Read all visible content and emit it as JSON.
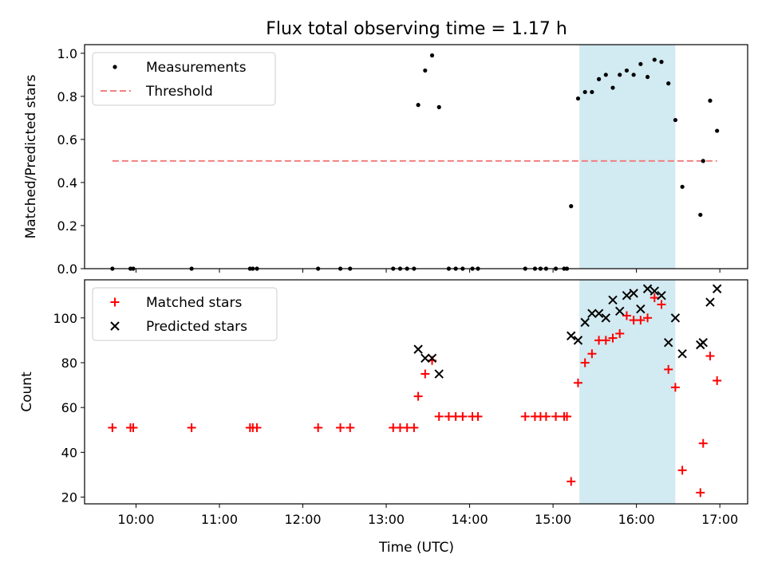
{
  "figure": {
    "title": "Flux total observing time = 1.17 h",
    "xlabel": "Time (UTC)",
    "xticks": [
      "10:00",
      "11:00",
      "12:00",
      "13:00",
      "14:00",
      "15:00",
      "16:00",
      "17:00"
    ]
  },
  "colors": {
    "measurements": "#000000",
    "threshold": "#f08080",
    "matched": "#ff0000",
    "predicted": "#000000",
    "span": "#add8e6"
  },
  "chart_data": [
    {
      "type": "scatter",
      "ylabel": "Matched/Predicted stars",
      "xlim": [
        "09:23",
        "17:20"
      ],
      "ylim": [
        0,
        1.04
      ],
      "yticks": [
        "0.0",
        "0.2",
        "0.4",
        "0.6",
        "0.8",
        "1.0"
      ],
      "shaded_span": [
        "15:19",
        "16:28"
      ],
      "legend": {
        "placement": "upper left",
        "entries": [
          "Measurements",
          "Threshold"
        ]
      },
      "threshold": {
        "name": "Threshold",
        "value": 0.5,
        "x": [
          "09:43",
          "16:58"
        ]
      },
      "series": [
        {
          "name": "Measurements",
          "points": [
            [
              "09:43",
              0.0
            ],
            [
              "09:56",
              0.0
            ],
            [
              "09:58",
              0.0
            ],
            [
              "10:40",
              0.0
            ],
            [
              "11:22",
              0.0
            ],
            [
              "11:24",
              0.0
            ],
            [
              "11:27",
              0.0
            ],
            [
              "12:11",
              0.0
            ],
            [
              "12:27",
              0.0
            ],
            [
              "12:34",
              0.0
            ],
            [
              "13:05",
              0.0
            ],
            [
              "13:10",
              0.0
            ],
            [
              "13:15",
              0.0
            ],
            [
              "13:20",
              0.0
            ],
            [
              "13:23",
              0.76
            ],
            [
              "13:28",
              0.92
            ],
            [
              "13:33",
              0.99
            ],
            [
              "13:38",
              0.75
            ],
            [
              "13:45",
              0.0
            ],
            [
              "13:50",
              0.0
            ],
            [
              "13:55",
              0.0
            ],
            [
              "14:02",
              0.0
            ],
            [
              "14:06",
              0.0
            ],
            [
              "14:40",
              0.0
            ],
            [
              "14:47",
              0.0
            ],
            [
              "14:51",
              0.0
            ],
            [
              "14:55",
              0.0
            ],
            [
              "15:02",
              0.0
            ],
            [
              "15:08",
              0.0
            ],
            [
              "15:10",
              0.0
            ],
            [
              "15:13",
              0.29
            ],
            [
              "15:18",
              0.79
            ],
            [
              "15:23",
              0.82
            ],
            [
              "15:28",
              0.82
            ],
            [
              "15:33",
              0.88
            ],
            [
              "15:38",
              0.9
            ],
            [
              "15:43",
              0.84
            ],
            [
              "15:48",
              0.9
            ],
            [
              "15:53",
              0.92
            ],
            [
              "15:58",
              0.9
            ],
            [
              "16:03",
              0.95
            ],
            [
              "16:08",
              0.89
            ],
            [
              "16:13",
              0.97
            ],
            [
              "16:18",
              0.96
            ],
            [
              "16:23",
              0.86
            ],
            [
              "16:28",
              0.69
            ],
            [
              "16:33",
              0.38
            ],
            [
              "16:46",
              0.25
            ],
            [
              "16:48",
              0.5
            ],
            [
              "16:53",
              0.78
            ],
            [
              "16:58",
              0.64
            ]
          ]
        }
      ]
    },
    {
      "type": "scatter",
      "ylabel": "Count",
      "xlim": [
        "09:23",
        "17:20"
      ],
      "ylim": [
        17,
        117
      ],
      "yticks": [
        "20",
        "40",
        "60",
        "80",
        "100"
      ],
      "shaded_span": [
        "15:19",
        "16:28"
      ],
      "legend": {
        "placement": "upper left",
        "entries": [
          "Matched stars",
          "Predicted stars"
        ]
      },
      "series": [
        {
          "name": "Matched stars",
          "points": [
            [
              "09:43",
              51
            ],
            [
              "09:56",
              51
            ],
            [
              "09:58",
              51
            ],
            [
              "10:40",
              51
            ],
            [
              "11:22",
              51
            ],
            [
              "11:24",
              51
            ],
            [
              "11:27",
              51
            ],
            [
              "12:11",
              51
            ],
            [
              "12:27",
              51
            ],
            [
              "12:34",
              51
            ],
            [
              "13:05",
              51
            ],
            [
              "13:10",
              51
            ],
            [
              "13:15",
              51
            ],
            [
              "13:20",
              51
            ],
            [
              "13:23",
              65
            ],
            [
              "13:28",
              75
            ],
            [
              "13:33",
              81
            ],
            [
              "13:38",
              56
            ],
            [
              "13:45",
              56
            ],
            [
              "13:50",
              56
            ],
            [
              "13:55",
              56
            ],
            [
              "14:02",
              56
            ],
            [
              "14:06",
              56
            ],
            [
              "14:40",
              56
            ],
            [
              "14:47",
              56
            ],
            [
              "14:51",
              56
            ],
            [
              "14:55",
              56
            ],
            [
              "15:02",
              56
            ],
            [
              "15:08",
              56
            ],
            [
              "15:10",
              56
            ],
            [
              "15:13",
              27
            ],
            [
              "15:18",
              71
            ],
            [
              "15:23",
              80
            ],
            [
              "15:28",
              84
            ],
            [
              "15:33",
              90
            ],
            [
              "15:38",
              90
            ],
            [
              "15:43",
              91
            ],
            [
              "15:48",
              93
            ],
            [
              "15:53",
              101
            ],
            [
              "15:58",
              99
            ],
            [
              "16:03",
              99
            ],
            [
              "16:08",
              100
            ],
            [
              "16:13",
              109
            ],
            [
              "16:18",
              106
            ],
            [
              "16:23",
              77
            ],
            [
              "16:28",
              69
            ],
            [
              "16:33",
              32
            ],
            [
              "16:46",
              22
            ],
            [
              "16:48",
              44
            ],
            [
              "16:53",
              83
            ],
            [
              "16:58",
              72
            ]
          ]
        },
        {
          "name": "Predicted stars",
          "points": [
            [
              "13:23",
              86
            ],
            [
              "13:28",
              82
            ],
            [
              "13:33",
              82
            ],
            [
              "13:38",
              75
            ],
            [
              "15:13",
              92
            ],
            [
              "15:18",
              90
            ],
            [
              "15:23",
              98
            ],
            [
              "15:28",
              102
            ],
            [
              "15:33",
              102
            ],
            [
              "15:38",
              100
            ],
            [
              "15:43",
              108
            ],
            [
              "15:48",
              103
            ],
            [
              "15:53",
              110
            ],
            [
              "15:58",
              111
            ],
            [
              "16:03",
              104
            ],
            [
              "16:08",
              113
            ],
            [
              "16:13",
              112
            ],
            [
              "16:18",
              110
            ],
            [
              "16:23",
              89
            ],
            [
              "16:28",
              100
            ],
            [
              "16:33",
              84
            ],
            [
              "16:46",
              88
            ],
            [
              "16:48",
              89
            ],
            [
              "16:53",
              107
            ],
            [
              "16:58",
              113
            ]
          ]
        }
      ]
    }
  ]
}
